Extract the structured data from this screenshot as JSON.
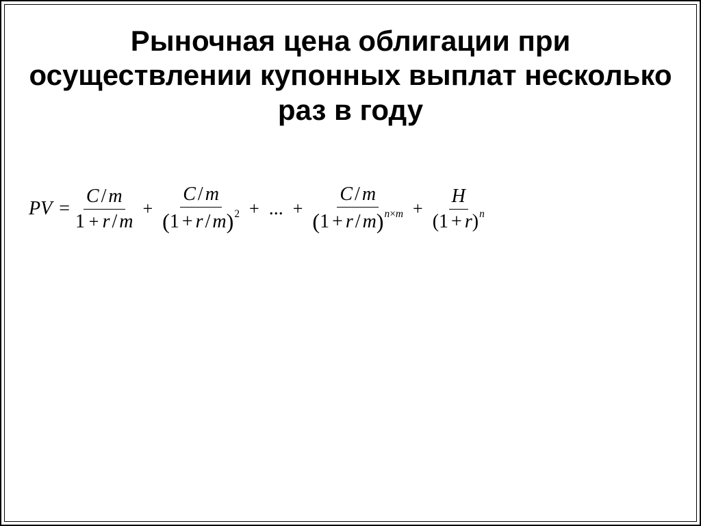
{
  "title": "Рыночная цена облигации при осуществлении купонных выплат несколько раз в году",
  "formula": {
    "lhs": "PV",
    "eq": "=",
    "plus": "+",
    "dots": "...",
    "term1": {
      "num_C": "C",
      "num_m": "m",
      "den_prefix": "1",
      "den_r": "r",
      "den_m": "m"
    },
    "term2": {
      "num_C": "C",
      "num_m": "m",
      "den_prefix": "1",
      "den_r": "r",
      "den_m": "m",
      "exp": "2"
    },
    "term3": {
      "num_C": "C",
      "num_m": "m",
      "den_prefix": "1",
      "den_r": "r",
      "den_m": "m",
      "exp_n": "n",
      "exp_times": "×",
      "exp_m": "m"
    },
    "term4": {
      "num_H": "H",
      "den_prefix": "1",
      "den_r": "r",
      "exp_n": "n"
    }
  },
  "style": {
    "title_fontsize": 42,
    "formula_fontsize": 28,
    "text_color": "#000000",
    "background": "#ffffff",
    "border_color": "#000000"
  }
}
